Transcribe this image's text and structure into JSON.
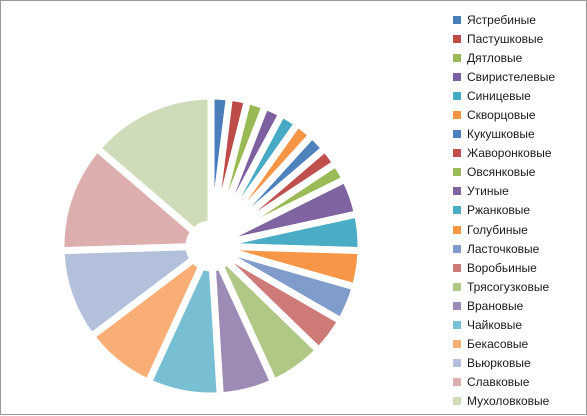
{
  "chart_data": {
    "type": "pie",
    "exploded": true,
    "legend_position": "right",
    "categories": [
      "Ястребиные",
      "Пастушковые",
      "Дятловые",
      "Свиристелевые",
      "Синицевые",
      "Скворцовые",
      "Кукушковые",
      "Жаворонковые",
      "Овсянковые",
      "Утиные",
      "Ржанковые",
      "Голубиные",
      "Ласточковые",
      "Воробьиные",
      "Трясогузковые",
      "Врановые",
      "Чайковые",
      "Бекасовые",
      "Вьюрковые",
      "Славковые",
      "Мухоловковые"
    ],
    "values": [
      1,
      1,
      1,
      1,
      1,
      1,
      1,
      1,
      1,
      2,
      2,
      2,
      2,
      2,
      3,
      3,
      4,
      4,
      5,
      6,
      7
    ],
    "colors": [
      "#4a7ebb",
      "#be4b48",
      "#98b954",
      "#7d60a0",
      "#46aac5",
      "#f69545",
      "#4f81bd",
      "#c0504d",
      "#9bbb59",
      "#8064a2",
      "#4bacc6",
      "#f79646",
      "#7f9ccb",
      "#cd7a79",
      "#b0c886",
      "#9d8bb5",
      "#78bfd3",
      "#f9ae76",
      "#b2c0dc",
      "#dcaeae",
      "#cfdcb9"
    ]
  }
}
